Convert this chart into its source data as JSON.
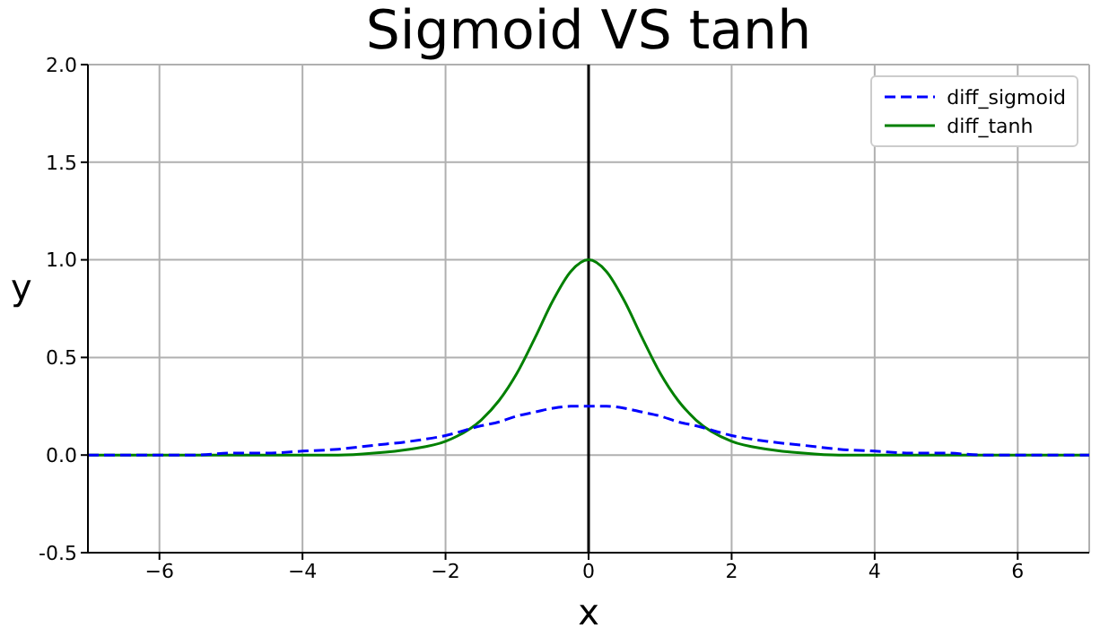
{
  "chart_data": {
    "type": "line",
    "title": "Sigmoid VS tanh",
    "xlabel": "x",
    "ylabel": "y",
    "x": [
      -7,
      -6.5,
      -6,
      -5.5,
      -5,
      -4.5,
      -4,
      -3.5,
      -3,
      -2.5,
      -2,
      -1.5,
      -1.25,
      -1,
      -0.75,
      -0.5,
      -0.25,
      0,
      0.25,
      0.5,
      0.75,
      1,
      1.25,
      1.5,
      2,
      2.5,
      3,
      3.5,
      4,
      4.5,
      5,
      5.5,
      6,
      6.5,
      7
    ],
    "series": [
      {
        "name": "diff_sigmoid",
        "color": "#0000ff",
        "line_style": "dashed",
        "values": [
          0,
          0,
          0,
          0,
          0.01,
          0.01,
          0.02,
          0.03,
          0.05,
          0.07,
          0.1,
          0.15,
          0.17,
          0.2,
          0.22,
          0.24,
          0.25,
          0.25,
          0.25,
          0.24,
          0.22,
          0.2,
          0.17,
          0.15,
          0.1,
          0.07,
          0.05,
          0.03,
          0.02,
          0.01,
          0.01,
          0,
          0,
          0,
          0
        ]
      },
      {
        "name": "diff_tanh",
        "color": "#008000",
        "line_style": "solid",
        "values": [
          0,
          0,
          0,
          0,
          0,
          0,
          0,
          0,
          0.01,
          0.03,
          0.07,
          0.18,
          0.28,
          0.42,
          0.6,
          0.79,
          0.94,
          1,
          0.94,
          0.79,
          0.6,
          0.42,
          0.28,
          0.18,
          0.07,
          0.03,
          0.01,
          0,
          0,
          0,
          0,
          0,
          0,
          0,
          0
        ]
      }
    ],
    "xlim": [
      -7,
      7
    ],
    "xticks": [
      -6,
      -4,
      -2,
      0,
      2,
      4,
      6
    ],
    "ylim": [
      -0.5,
      2
    ],
    "yticks": [
      -0.5,
      {
        "value": 0,
        "label": "0.0"
      },
      0.5,
      {
        "value": 1,
        "label": "1.0"
      },
      1.5,
      {
        "value": 2,
        "label": "2.0"
      }
    ],
    "ref_lines": [
      {
        "axis": "x",
        "value": 0,
        "color": "#000000"
      }
    ],
    "grid": true,
    "legend": "top right",
    "marker": "none"
  }
}
